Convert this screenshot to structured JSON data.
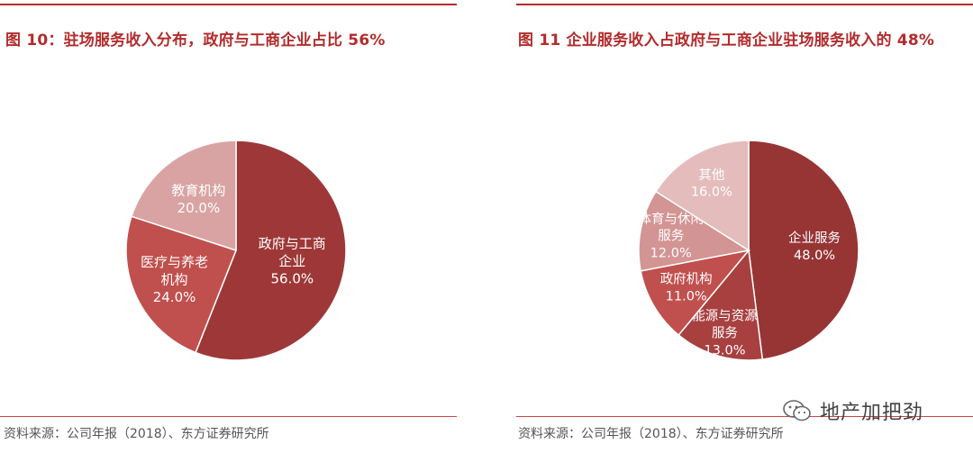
{
  "charts": {
    "left": {
      "title": "图 10：驻场服务收入分布，政府与工商企业占比 56%",
      "source": "资料来源：公司年报（2018）、东方证券研究所"
    },
    "right": {
      "title": "图 11 企业服务收入占政府与工商企业驻场服务收入的 48%",
      "source": "资料来源：公司年报（2018）、东方证券研究所"
    }
  },
  "watermark": {
    "text": "地产加把劲",
    "icon": "wechat-icon"
  },
  "chart_data": [
    {
      "type": "pie",
      "title": "图 10：驻场服务收入分布，政府与工商企业占比 56%",
      "slices": [
        {
          "label": "政府与工商企业",
          "value": 56.0,
          "display": "56.0%",
          "color": "#9e3838"
        },
        {
          "label": "医疗与养老机构",
          "value": 24.0,
          "display": "24.0%",
          "color": "#c0504d"
        },
        {
          "label": "教育机构",
          "value": 20.0,
          "display": "20.0%",
          "color": "#d9a3a3"
        }
      ]
    },
    {
      "type": "pie",
      "title": "图 11 企业服务收入占政府与工商企业驻场服务收入的 48%",
      "slices": [
        {
          "label": "企业服务",
          "value": 48.0,
          "display": "48.0%",
          "color": "#973535"
        },
        {
          "label": "能源与资源服务",
          "value": 13.0,
          "display": "13.0%",
          "color": "#a84040"
        },
        {
          "label": "政府机构",
          "value": 11.0,
          "display": "11.0%",
          "color": "#c0504d"
        },
        {
          "label": "体育与休闲服务",
          "value": 12.0,
          "display": "12.0%",
          "color": "#d39494"
        },
        {
          "label": "其他",
          "value": 16.0,
          "display": "16.0%",
          "color": "#e4bcbc"
        }
      ]
    }
  ]
}
